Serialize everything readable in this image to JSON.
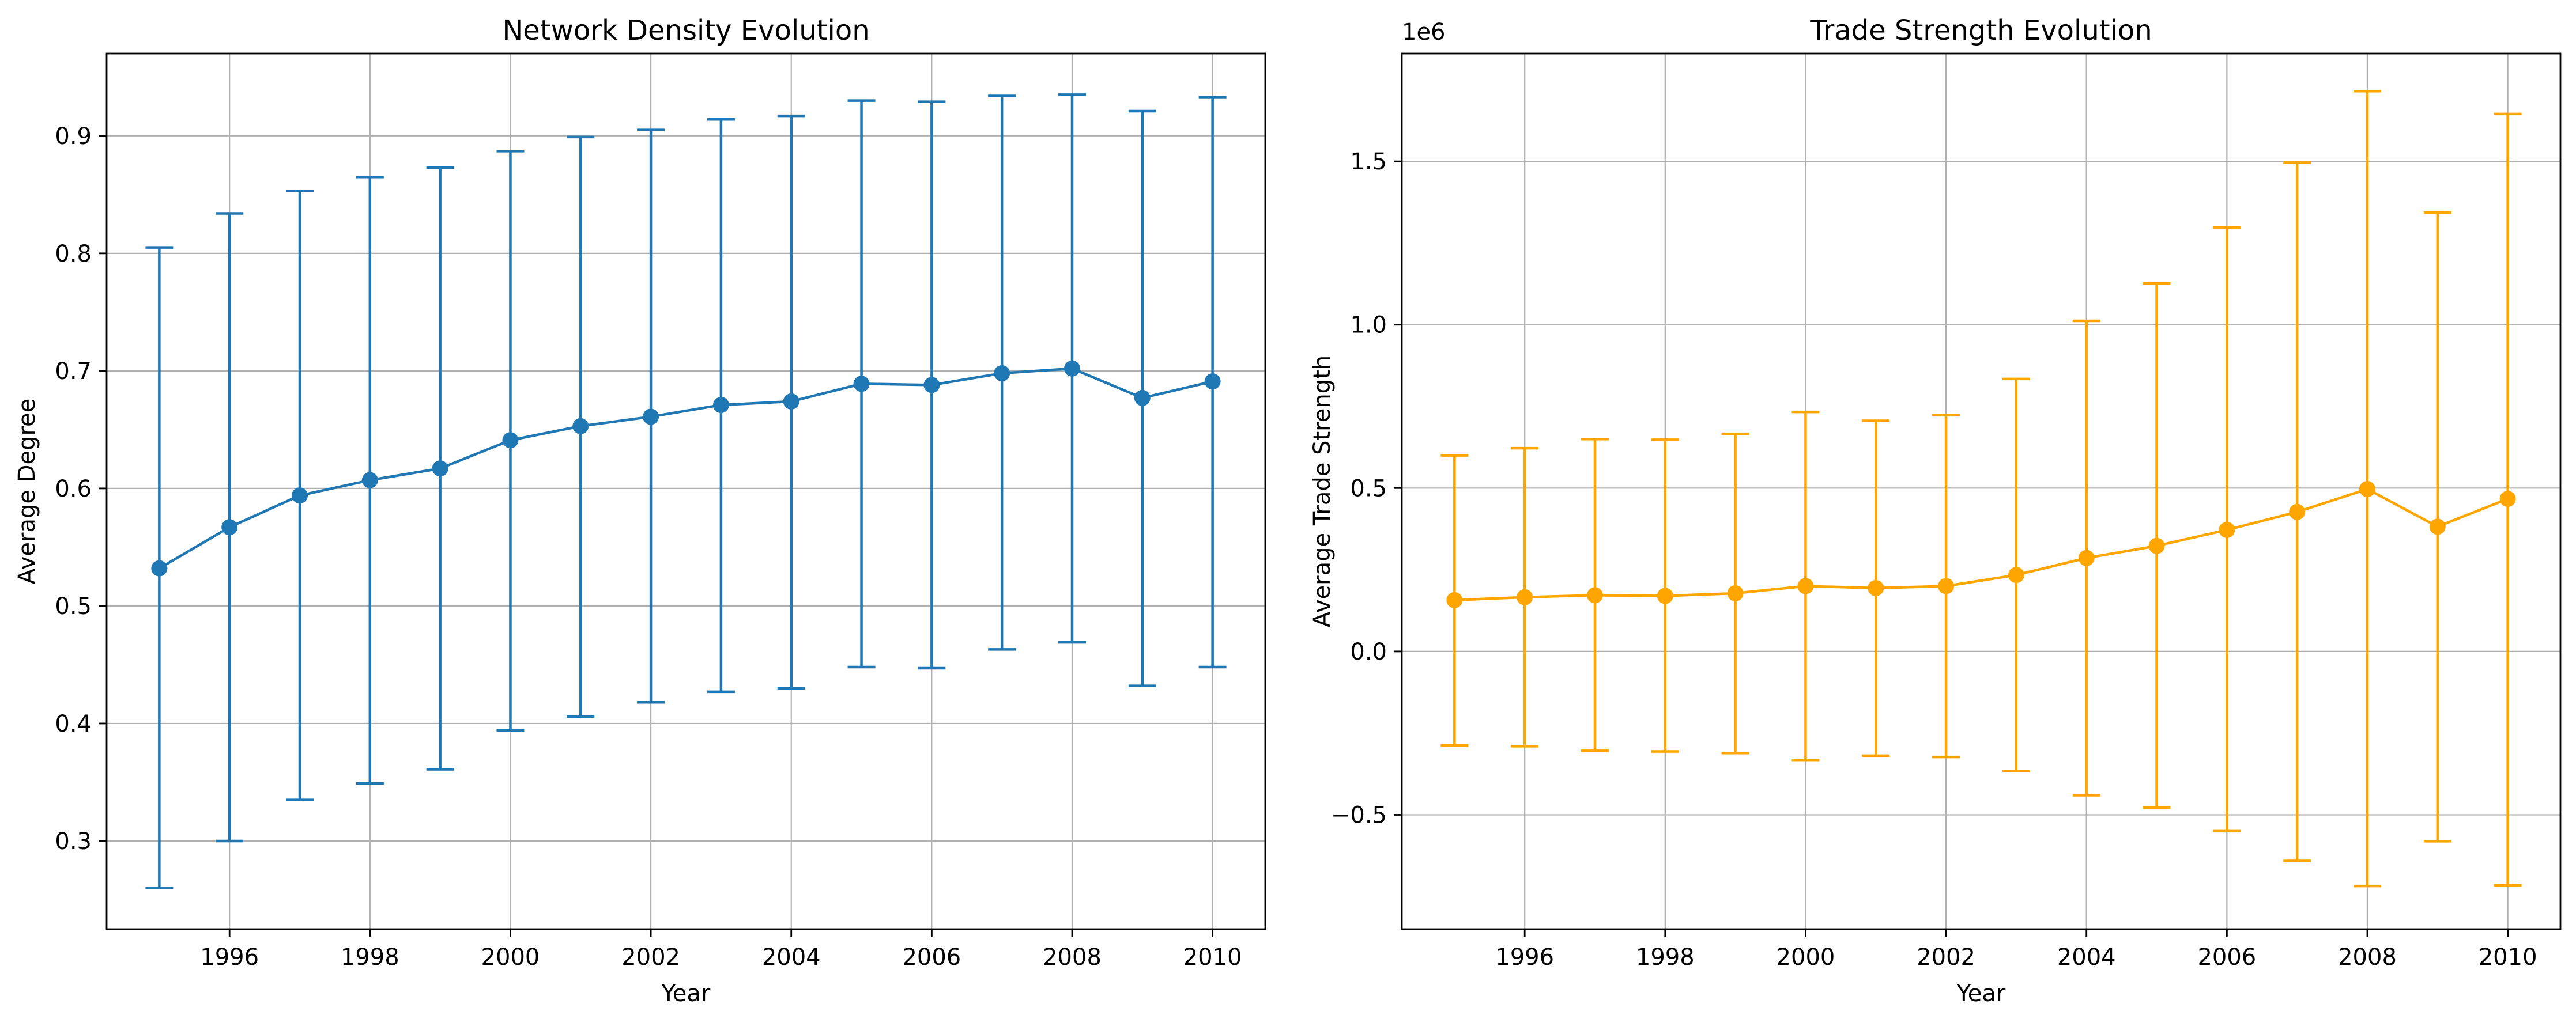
{
  "chart_data": [
    {
      "type": "line",
      "title": "Network Density Evolution",
      "xlabel": "Year",
      "ylabel": "Average Degree",
      "offset_label": "",
      "xlim": [
        1994.25,
        2010.75
      ],
      "ylim": [
        0.225,
        0.97
      ],
      "xticks": [
        1996,
        1998,
        2000,
        2002,
        2004,
        2006,
        2008,
        2010
      ],
      "xtick_labels": [
        "1996",
        "1998",
        "2000",
        "2002",
        "2004",
        "2006",
        "2008",
        "2010"
      ],
      "yticks": [
        0.3,
        0.4,
        0.5,
        0.6,
        0.7,
        0.8,
        0.9
      ],
      "ytick_labels": [
        "0.3",
        "0.4",
        "0.5",
        "0.6",
        "0.7",
        "0.8",
        "0.9"
      ],
      "grid": true,
      "color": "#1f77b4",
      "x": [
        1995,
        1996,
        1997,
        1998,
        1999,
        2000,
        2001,
        2002,
        2003,
        2004,
        2005,
        2006,
        2007,
        2008,
        2009,
        2010
      ],
      "y": [
        0.532,
        0.567,
        0.594,
        0.607,
        0.617,
        0.641,
        0.653,
        0.661,
        0.671,
        0.674,
        0.689,
        0.688,
        0.698,
        0.702,
        0.677,
        0.691
      ],
      "yerr_low": [
        0.26,
        0.3,
        0.335,
        0.349,
        0.361,
        0.394,
        0.406,
        0.418,
        0.427,
        0.43,
        0.448,
        0.447,
        0.463,
        0.469,
        0.432,
        0.448
      ],
      "yerr_high": [
        0.805,
        0.834,
        0.853,
        0.865,
        0.873,
        0.887,
        0.899,
        0.905,
        0.914,
        0.917,
        0.93,
        0.929,
        0.934,
        0.935,
        0.921,
        0.933
      ]
    },
    {
      "type": "line",
      "title": "Trade Strength Evolution",
      "xlabel": "Year",
      "ylabel": "Average Trade Strength",
      "offset_label": "1e6",
      "xlim": [
        1994.25,
        2010.75
      ],
      "ylim": [
        -0.85,
        1.83
      ],
      "xticks": [
        1996,
        1998,
        2000,
        2002,
        2004,
        2006,
        2008,
        2010
      ],
      "xtick_labels": [
        "1996",
        "1998",
        "2000",
        "2002",
        "2004",
        "2006",
        "2008",
        "2010"
      ],
      "yticks": [
        -0.5,
        0.0,
        0.5,
        1.0,
        1.5
      ],
      "ytick_labels": [
        "−0.5",
        "0.0",
        "0.5",
        "1.0",
        "1.5"
      ],
      "grid": true,
      "color": "#ffa500",
      "x": [
        1995,
        1996,
        1997,
        1998,
        1999,
        2000,
        2001,
        2002,
        2003,
        2004,
        2005,
        2006,
        2007,
        2008,
        2009,
        2010
      ],
      "y": [
        0.157,
        0.166,
        0.172,
        0.17,
        0.178,
        0.2,
        0.194,
        0.2,
        0.234,
        0.286,
        0.323,
        0.372,
        0.427,
        0.497,
        0.382,
        0.467
      ],
      "yerr_low": [
        -0.288,
        -0.29,
        -0.304,
        -0.306,
        -0.311,
        -0.332,
        -0.319,
        -0.323,
        -0.366,
        -0.44,
        -0.478,
        -0.55,
        -0.641,
        -0.718,
        -0.581,
        -0.716
      ],
      "yerr_high": [
        0.6,
        0.622,
        0.65,
        0.648,
        0.666,
        0.733,
        0.706,
        0.723,
        0.834,
        1.012,
        1.126,
        1.297,
        1.496,
        1.715,
        1.343,
        1.645
      ]
    }
  ]
}
